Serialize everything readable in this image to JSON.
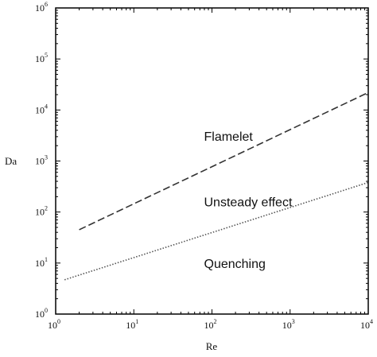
{
  "chart_data": {
    "type": "line",
    "xlabel": "Re",
    "ylabel": "Da",
    "xscale": "log",
    "yscale": "log",
    "xlim": [
      1,
      10000
    ],
    "ylim": [
      1,
      1000000
    ],
    "grid": false,
    "x_tick_labels": [
      {
        "base": "10",
        "exp": "0"
      },
      {
        "base": "10",
        "exp": "1"
      },
      {
        "base": "10",
        "exp": "2"
      },
      {
        "base": "10",
        "exp": "3"
      },
      {
        "base": "10",
        "exp": "4"
      }
    ],
    "y_tick_labels": [
      {
        "base": "10",
        "exp": "0"
      },
      {
        "base": "10",
        "exp": "1"
      },
      {
        "base": "10",
        "exp": "2"
      },
      {
        "base": "10",
        "exp": "3"
      },
      {
        "base": "10",
        "exp": "4"
      },
      {
        "base": "10",
        "exp": "5"
      },
      {
        "base": "10",
        "exp": "6"
      }
    ],
    "series": [
      {
        "style": "dashed",
        "x": [
          2,
          10000
        ],
        "y": [
          45,
          22000
        ]
      },
      {
        "style": "dotted",
        "x": [
          1.3,
          10000
        ],
        "y": [
          4.7,
          380
        ]
      }
    ],
    "annotations": [
      {
        "text": "Flamelet",
        "x": 100,
        "y": 2500
      },
      {
        "text": "Unsteady effect",
        "x": 100,
        "y": 130
      },
      {
        "text": "Quenching",
        "x": 100,
        "y": 8
      }
    ]
  }
}
